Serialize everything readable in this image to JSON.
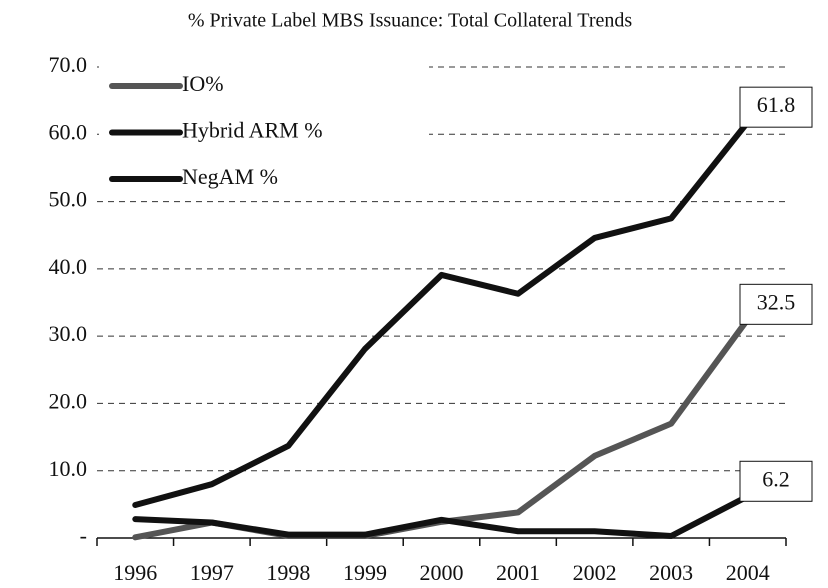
{
  "chart_data": {
    "type": "line",
    "title": "% Private Label MBS Issuance: Total Collateral Trends",
    "categories": [
      "1996",
      "1997",
      "1998",
      "1999",
      "2000",
      "2001",
      "2002",
      "2003",
      "2004"
    ],
    "series": [
      {
        "name": "IO%",
        "color": "#555555",
        "values": [
          0.1,
          2.3,
          0.3,
          0.3,
          2.4,
          3.8,
          12.2,
          17.0,
          32.5
        ]
      },
      {
        "name": "Hybrid ARM %",
        "color": "#111111",
        "values": [
          4.9,
          8.0,
          13.7,
          28.1,
          39.1,
          36.3,
          44.6,
          47.5,
          61.8
        ]
      },
      {
        "name": "NegAM %",
        "color": "#111111",
        "values": [
          2.8,
          2.3,
          0.5,
          0.5,
          2.7,
          1.0,
          1.0,
          0.3,
          6.2
        ]
      }
    ],
    "ylim": [
      0,
      70
    ],
    "yticks": [
      {
        "value": 0,
        "label": "-"
      },
      {
        "value": 10,
        "label": "10.0"
      },
      {
        "value": 20,
        "label": "20.0"
      },
      {
        "value": 30,
        "label": "30.0"
      },
      {
        "value": 40,
        "label": "40.0"
      },
      {
        "value": 50,
        "label": "50.0"
      },
      {
        "value": 60,
        "label": "60.0"
      },
      {
        "value": 70,
        "label": "70.0"
      }
    ],
    "grid": true,
    "legend": "upper left"
  }
}
